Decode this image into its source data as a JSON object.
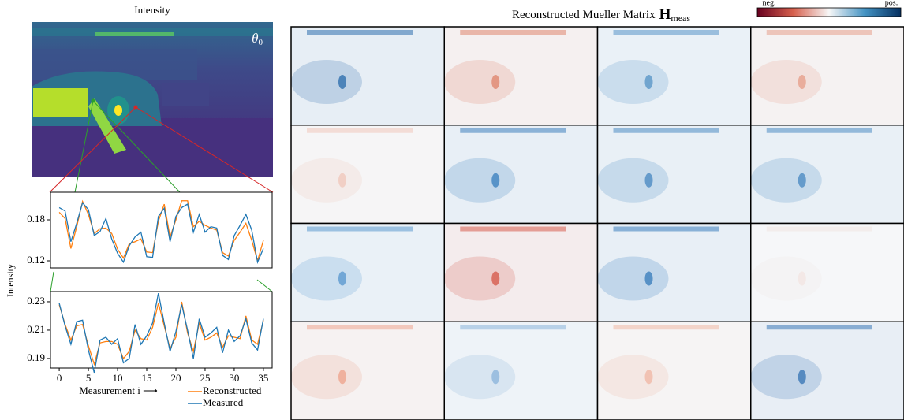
{
  "figure": {
    "intensity_title": "Intensity",
    "theta_symbol": "θ",
    "theta_subscript": "0",
    "mueller_title": "Reconstructed Mueller Matrix",
    "mueller_symbol": "H",
    "mueller_subscript": "meas",
    "colorbar_neg": "neg.",
    "colorbar_pos": "pos.",
    "ylabel": "Intensity"
  },
  "chart_data": [
    {
      "type": "line",
      "x": [
        0,
        1,
        2,
        3,
        4,
        5,
        6,
        7,
        8,
        9,
        10,
        11,
        12,
        13,
        14,
        15,
        16,
        17,
        18,
        19,
        20,
        21,
        22,
        23,
        24,
        25,
        26,
        27,
        28,
        29,
        30,
        31,
        32,
        33,
        34,
        35
      ],
      "series": [
        {
          "color": "#ff7f0e",
          "values": [
            0.191,
            0.182,
            0.138,
            0.17,
            0.207,
            0.188,
            0.16,
            0.167,
            0.168,
            0.16,
            0.137,
            0.124,
            0.145,
            0.148,
            0.152,
            0.133,
            0.132,
            0.178,
            0.203,
            0.155,
            0.18,
            0.208,
            0.208,
            0.17,
            0.178,
            0.172,
            0.168,
            0.165,
            0.132,
            0.127,
            0.15,
            0.162,
            0.175,
            0.15,
            0.12,
            0.15
          ]
        },
        {
          "color": "#1f77b4",
          "values": [
            0.198,
            0.193,
            0.148,
            0.175,
            0.205,
            0.195,
            0.157,
            0.163,
            0.182,
            0.152,
            0.131,
            0.118,
            0.142,
            0.155,
            0.162,
            0.126,
            0.125,
            0.185,
            0.197,
            0.148,
            0.185,
            0.198,
            0.203,
            0.162,
            0.188,
            0.162,
            0.17,
            0.168,
            0.128,
            0.122,
            0.157,
            0.172,
            0.188,
            0.165,
            0.118,
            0.138
          ]
        }
      ],
      "xlim": [
        -1.5,
        36.5
      ],
      "ylim": [
        0.1096,
        0.2204
      ],
      "yticks": [
        0.12,
        0.18
      ]
    },
    {
      "type": "line",
      "x": [
        0,
        1,
        2,
        3,
        4,
        5,
        6,
        7,
        8,
        9,
        10,
        11,
        12,
        13,
        14,
        15,
        16,
        17,
        18,
        19,
        20,
        21,
        22,
        23,
        24,
        25,
        26,
        27,
        28,
        29,
        30,
        31,
        32,
        33,
        34,
        35
      ],
      "xlabel": "Measurement i ⟶",
      "series": [
        {
          "name": "Reconstructed",
          "color": "#ff7f0e",
          "values": [
            0.228,
            0.214,
            0.203,
            0.213,
            0.214,
            0.199,
            0.186,
            0.201,
            0.202,
            0.202,
            0.2,
            0.19,
            0.195,
            0.21,
            0.204,
            0.203,
            0.212,
            0.229,
            0.213,
            0.197,
            0.205,
            0.23,
            0.208,
            0.195,
            0.215,
            0.203,
            0.205,
            0.208,
            0.198,
            0.206,
            0.205,
            0.204,
            0.22,
            0.203,
            0.2,
            0.217
          ]
        },
        {
          "name": "Measured",
          "color": "#1f77b4",
          "values": [
            0.229,
            0.213,
            0.2,
            0.216,
            0.217,
            0.196,
            0.18,
            0.203,
            0.205,
            0.2,
            0.204,
            0.187,
            0.19,
            0.214,
            0.2,
            0.206,
            0.215,
            0.236,
            0.215,
            0.195,
            0.209,
            0.228,
            0.21,
            0.19,
            0.218,
            0.205,
            0.208,
            0.212,
            0.194,
            0.21,
            0.202,
            0.206,
            0.218,
            0.201,
            0.196,
            0.218
          ]
        }
      ],
      "xlim": [
        -1.5,
        36.5
      ],
      "ylim": [
        0.1833,
        0.2372
      ],
      "xticks": [
        0,
        5,
        10,
        15,
        20,
        25,
        30,
        35
      ],
      "yticks": [
        0.19,
        0.21,
        0.23
      ],
      "legend": "lower right"
    }
  ]
}
